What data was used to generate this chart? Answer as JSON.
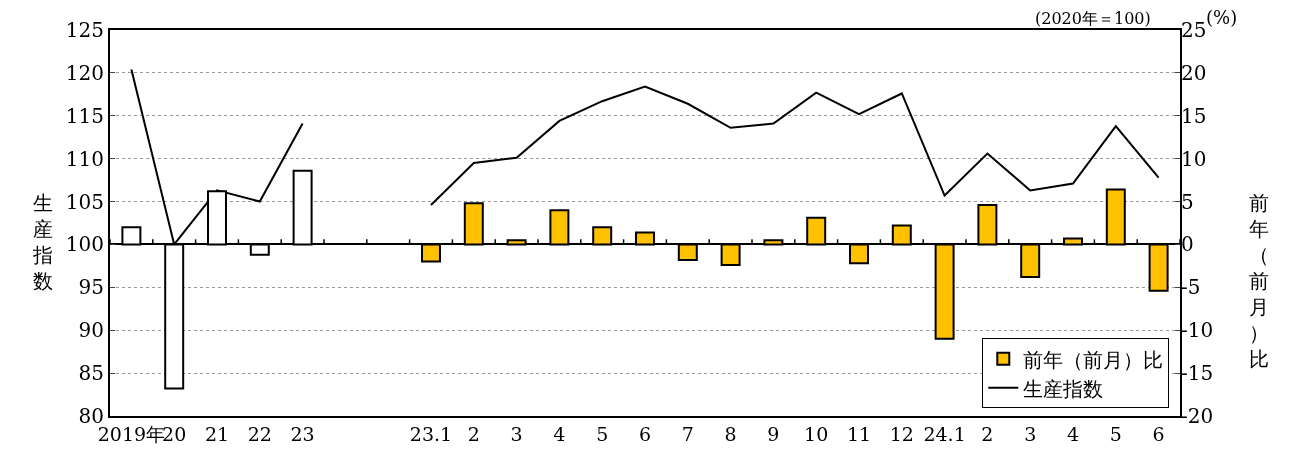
{
  "chart_data": {
    "type": "bar",
    "categories": [
      "2019年",
      "20",
      "21",
      "22",
      "23",
      null,
      null,
      "23.1",
      "2",
      "3",
      "4",
      "5",
      "6",
      "7",
      "8",
      "9",
      "10",
      "11",
      "12",
      "24.1",
      "2",
      "3",
      "4",
      "5",
      "6"
    ],
    "series": [
      {
        "name": "前年（前月）比",
        "axis": "y2",
        "color": "#ffc000",
        "colors": [
          "#ffffff",
          "#ffffff",
          "#ffffff",
          "#ffffff",
          "#ffffff",
          null,
          null,
          "#ffc000",
          "#ffc000",
          "#ffc000",
          "#ffc000",
          "#ffc000",
          "#ffc000",
          "#ffc000",
          "#ffc000",
          "#ffc000",
          "#ffc000",
          "#ffc000",
          "#ffc000",
          "#ffc000",
          "#ffc000",
          "#ffc000",
          "#ffc000",
          "#ffc000",
          "#ffc000"
        ],
        "values": [
          2.0,
          -16.8,
          6.2,
          -1.2,
          8.6,
          null,
          null,
          -2.0,
          4.8,
          0.5,
          4.0,
          2.0,
          1.4,
          -1.8,
          -2.4,
          0.5,
          3.1,
          -2.2,
          2.2,
          -11.0,
          4.6,
          -3.8,
          0.7,
          6.4,
          -5.4
        ]
      },
      {
        "name": "生産指数",
        "type": "line",
        "color": "#000000",
        "values": [
          120.4,
          100.0,
          106.3,
          105.0,
          114.1,
          null,
          null,
          104.6,
          109.5,
          110.1,
          114.4,
          116.7,
          118.4,
          116.4,
          113.6,
          114.1,
          117.7,
          115.2,
          117.6,
          105.7,
          110.6,
          106.3,
          107.1,
          113.8,
          107.8
        ]
      }
    ],
    "ylabel": "生産指数",
    "y2label": "前年（前月）比",
    "annotations": [
      "(2020年＝100)",
      "(%)"
    ],
    "ylim": [
      80,
      125
    ],
    "yticks": [
      80,
      85,
      90,
      95,
      100,
      105,
      110,
      115,
      120,
      125
    ],
    "y2lim": [
      -20,
      25
    ],
    "y2ticks": [
      -20,
      -15,
      -10,
      -5,
      0,
      5,
      10,
      15,
      20,
      25
    ],
    "grid": "y",
    "legend": "bottom right",
    "line_style": "solid",
    "marker": "none"
  }
}
